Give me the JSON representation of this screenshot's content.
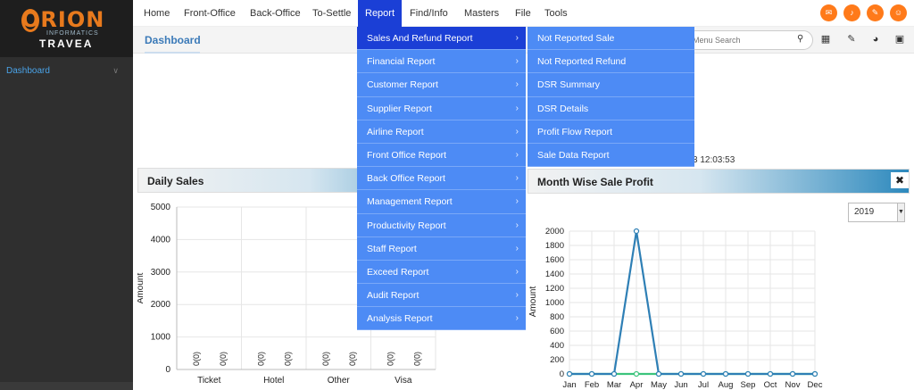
{
  "logo": {
    "brand": "ORION",
    "tagline": "INFORMATICS",
    "product": "TRAVEA"
  },
  "sidebar": {
    "dashboard_label": "Dashboard",
    "chevron": "chevron-down-icon"
  },
  "topnav": {
    "items": [
      "Home",
      "Front-Office",
      "Back-Office",
      "To-Settle",
      "Report",
      "Find/Info",
      "Masters",
      "File",
      "Tools"
    ],
    "active": "Report",
    "icons": [
      "mail-icon",
      "bell-icon",
      "brush-icon",
      "user-icon"
    ],
    "icon_color": "#ff7a1a"
  },
  "dashboard_bar": {
    "title": "Dashboard",
    "search_placeholder": "Menu Search",
    "icons": [
      "search-icon",
      "grid-icon",
      "translate-icon",
      "speedometer-icon",
      "fullscreen-icon"
    ]
  },
  "timestamp": "3 12:03:53",
  "report_menu": {
    "items": [
      "Sales And Refund Report",
      "Financial Report",
      "Customer Report",
      "Supplier Report",
      "Airline Report",
      "Front Office Report",
      "Back Office Report",
      "Management Report",
      "Productivity Report",
      "Staff Report",
      "Exceed Report",
      "Audit Report",
      "Analysis Report"
    ],
    "active": "Sales And Refund Report",
    "bg_color": "#4d8bf5",
    "active_color": "#1b3fd6"
  },
  "sub_menu": {
    "items": [
      "Not Reported Sale",
      "Not Reported Refund",
      "DSR Summary",
      "DSR Details",
      "Profit Flow Report",
      "Sale Data Report"
    ]
  },
  "daily_sales": {
    "title": "Daily Sales"
  },
  "month_profit": {
    "title": "Month Wise Sale Profit",
    "year": "2019"
  },
  "chart_data": [
    {
      "type": "bar",
      "title": "Daily Sales",
      "categories": [
        "Ticket",
        "Hotel",
        "Other",
        "Visa"
      ],
      "series": [
        {
          "values": [
            0,
            0,
            0,
            0
          ]
        },
        {
          "values": [
            0,
            0,
            0,
            0
          ]
        }
      ],
      "bar_labels": [
        "0(0)",
        "0(0)",
        "0(0)",
        "0(0)",
        "0(0)",
        "0(0)",
        "0(0)",
        "0(0)"
      ],
      "ylabel": "Amount",
      "yticks": [
        0,
        1000,
        2000,
        3000,
        4000,
        5000
      ],
      "ylim": [
        0,
        5000
      ],
      "grid": true
    },
    {
      "type": "line",
      "title": "Month Wise Sale Profit",
      "categories": [
        "Jan",
        "Feb",
        "Mar",
        "Apr",
        "May",
        "Jun",
        "Jul",
        "Aug",
        "Sep",
        "Oct",
        "Nov",
        "Dec"
      ],
      "series": [
        {
          "values": [
            0,
            0,
            0,
            2000,
            0,
            0,
            0,
            0,
            0,
            0,
            0,
            0
          ],
          "color": "#2e7fb5"
        },
        {
          "values": [
            0,
            0,
            0,
            0,
            0,
            0,
            0,
            0,
            0,
            0,
            0,
            0
          ],
          "color": "#3cc47c"
        }
      ],
      "ylabel": "Amount",
      "yticks": [
        0,
        200,
        400,
        600,
        800,
        1000,
        1200,
        1400,
        1600,
        1800,
        2000
      ],
      "ylim": [
        0,
        2000
      ],
      "grid": true
    }
  ]
}
